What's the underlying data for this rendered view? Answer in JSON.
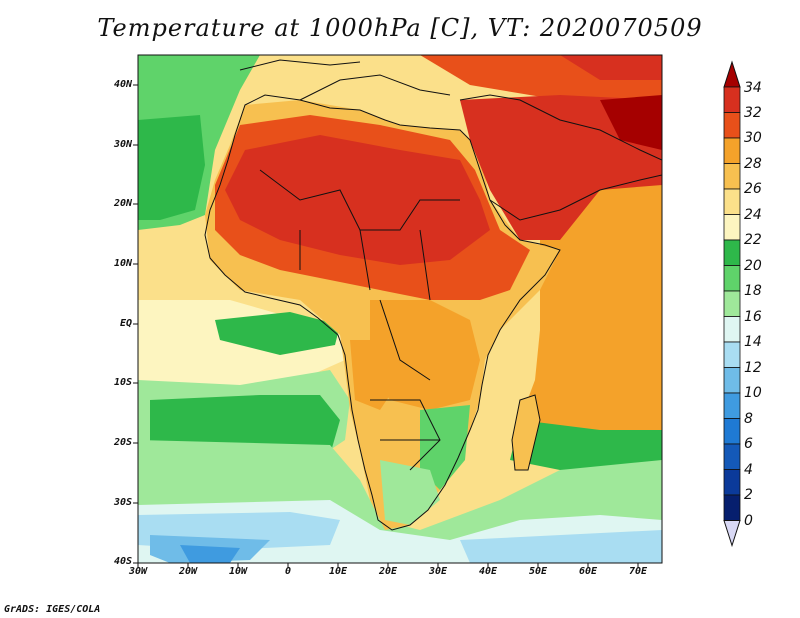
{
  "title": "Temperature at 1000hPa [C], VT: 2020070509",
  "footer": "GrADS: IGES/COLA",
  "map": {
    "lat_range": [
      -40,
      45
    ],
    "lon_range": [
      -30,
      75
    ],
    "lat_ticks": [
      "40N",
      "30N",
      "20N",
      "10N",
      "EQ",
      "10S",
      "20S",
      "30S",
      "40S"
    ],
    "lon_ticks": [
      "30W",
      "20W",
      "10W",
      "0",
      "10E",
      "20E",
      "30E",
      "40E",
      "50E",
      "60E",
      "70E"
    ],
    "units": "C"
  },
  "colorbar": {
    "labels": [
      "34",
      "32",
      "30",
      "28",
      "26",
      "24",
      "22",
      "20",
      "18",
      "16",
      "14",
      "12",
      "10",
      "8",
      "6",
      "4",
      "2",
      "0"
    ],
    "colors": [
      "#a50000",
      "#d7301f",
      "#e8501a",
      "#f4a22a",
      "#f7c050",
      "#fbe08a",
      "#fdf5c0",
      "#2eb84a",
      "#5fd36a",
      "#9fe89a",
      "#dff6f2",
      "#a9ddf2",
      "#6fbce8",
      "#3f9be0",
      "#1f7ad4",
      "#1459b8",
      "#0b3a9a",
      "#061f6e",
      "#d9d9f5"
    ]
  }
}
